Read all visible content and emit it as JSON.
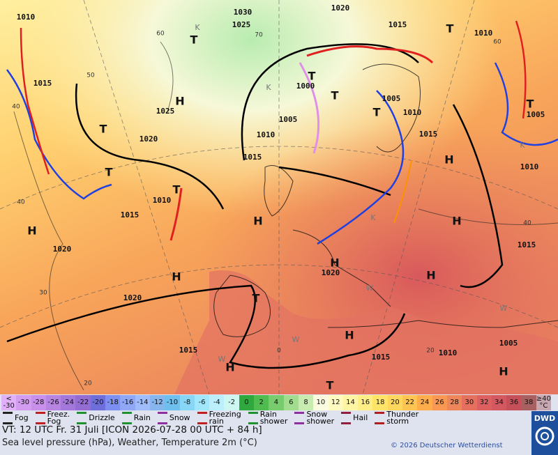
{
  "map": {
    "isobar_labels": [
      "1010",
      "1030",
      "1025",
      "1020",
      "1015",
      "1010",
      "1015",
      "1000",
      "1025",
      "1005",
      "1010",
      "1005",
      "1015",
      "1005",
      "1010",
      "1020",
      "1015",
      "1010",
      "1010",
      "1015",
      "1015",
      "1020",
      "1020",
      "1020",
      "1005",
      "1015",
      "1015",
      "1010"
    ],
    "centers": [
      "T",
      "T",
      "T",
      "H",
      "T",
      "T",
      "T",
      "H",
      "H",
      "T",
      "H",
      "H",
      "H",
      "H",
      "T",
      "H",
      "H",
      "H",
      "T",
      "H",
      "T",
      "T"
    ],
    "isotherm_labels": [
      "60",
      "70",
      "50",
      "40",
      "40",
      "30",
      "20",
      "60",
      "40",
      "20",
      "0"
    ],
    "air_mass_marks": [
      "K",
      "K",
      "K",
      "W",
      "W",
      "W",
      "W",
      "K"
    ]
  },
  "legend": {
    "scale_low": [
      "<",
      "-30"
    ],
    "scale": [
      -30,
      -28,
      -26,
      -24,
      -22,
      -20,
      -18,
      -16,
      -14,
      -12,
      -10,
      -8,
      -6,
      -4,
      -2,
      0,
      2,
      4,
      6,
      8,
      10,
      12,
      14,
      16,
      18,
      20,
      22,
      24,
      26,
      28,
      30,
      32,
      34,
      36,
      38
    ],
    "scale_colors": [
      "#d49cf0",
      "#c890ea",
      "#b784e2",
      "#a478da",
      "#946cd2",
      "#6f6fdc",
      "#7d8ff0",
      "#8fa7f6",
      "#9fbdfc",
      "#86b6ee",
      "#6ebfee",
      "#88d6f6",
      "#a2e6fc",
      "#bceffc",
      "#cdf7f0",
      "#2fa83d",
      "#4fbc4f",
      "#78cc6d",
      "#a1dc8f",
      "#c8ecb0",
      "#fbfbe0",
      "#fffbc0",
      "#fff5a2",
      "#ffee86",
      "#ffe468",
      "#ffd65e",
      "#ffc452",
      "#ffad4a",
      "#f89852",
      "#ef865a",
      "#e6705e",
      "#dd6060",
      "#d45860",
      "#c6505a",
      "#a86060"
    ],
    "scale_high": [
      "≥40",
      "°C"
    ],
    "scale_high_color": "#c8a8b0",
    "scale_low_color": "#e0b0f8",
    "weather": [
      [
        "Fog"
      ],
      [
        "Freez.",
        "Fog"
      ],
      [
        "Drizzle"
      ],
      [
        "Rain"
      ],
      [
        "Snow"
      ],
      [
        "Freezing",
        "rain"
      ],
      [
        "Rain",
        "shower"
      ],
      [
        "Snow",
        "shower"
      ],
      [
        "Hail"
      ],
      [
        "Thunder",
        "storm"
      ]
    ]
  },
  "footer": {
    "valid_time": "VT: 12 UTC Fr.  31 Juli [ICON 2026-07-28  00 UTC + 84 h]",
    "subtitle": "Sea level pressure (hPa), Weather, Temperature 2m (°C)",
    "copyright": "© 2026 Deutscher Wetterdienst",
    "logo": "DWD"
  }
}
